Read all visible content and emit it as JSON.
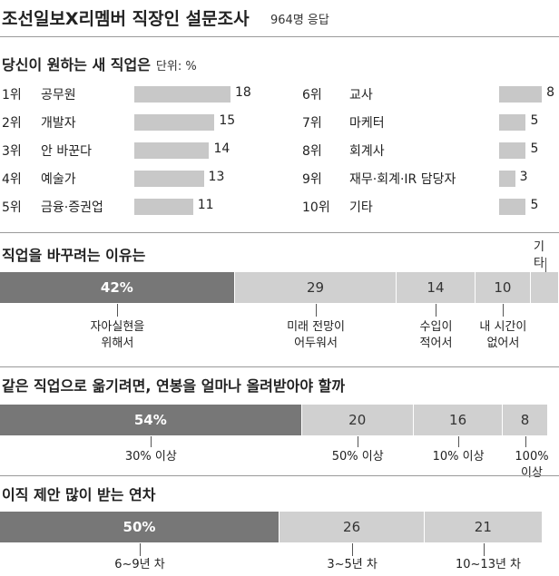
{
  "header": {
    "title": "조선일보X리멤버 직장인 설문조사",
    "note": "964명 응답"
  },
  "chart_data": [
    {
      "type": "bar",
      "title": "당신이 원하는 새 직업은",
      "unit": "단위: %",
      "ranks": [
        "1위",
        "2위",
        "3위",
        "4위",
        "5위",
        "6위",
        "7위",
        "8위",
        "9위",
        "10위"
      ],
      "categories": [
        "공무원",
        "개발자",
        "안 바꾼다",
        "예술가",
        "금융·증권업",
        "교사",
        "마케터",
        "회계사",
        "재무·회계·IR 담당자",
        "기타"
      ],
      "values": [
        18,
        15,
        14,
        13,
        11,
        8,
        5,
        5,
        3,
        5
      ],
      "value_labels": [
        "18",
        "15",
        "14",
        "13",
        "11",
        "8",
        "5",
        "5",
        "3",
        "5"
      ],
      "colors": {
        "bar": "#c8c8c8"
      }
    },
    {
      "type": "bar",
      "title": "직업을 바꾸려는 이유는",
      "categories": [
        "자아실현을\n위해서",
        "미래 전망이\n어두워서",
        "수입이\n적어서",
        "내 시간이\n없어서",
        "기타"
      ],
      "values": [
        42,
        29,
        14,
        10,
        5
      ],
      "value_labels": [
        "42%",
        "29",
        "14",
        "10",
        ""
      ],
      "colors": {
        "highlight": "#777777",
        "rest": "#d0d0d0"
      }
    },
    {
      "type": "bar",
      "title": "같은 직업으로 옮기려면, 연봉을 얼마나 올려받아야 할까",
      "categories": [
        "30% 이상",
        "50% 이상",
        "10% 이상",
        "100% 이상"
      ],
      "values": [
        54,
        20,
        16,
        8
      ],
      "value_labels": [
        "54%",
        "20",
        "16",
        "8"
      ],
      "colors": {
        "highlight": "#777777",
        "rest": "#d0d0d0"
      }
    },
    {
      "type": "bar",
      "title": "이직 제안 많이 받는 연차",
      "categories": [
        "6~9년 차",
        "3~5년 차",
        "10~13년 차"
      ],
      "values": [
        50,
        26,
        21
      ],
      "value_labels": [
        "50%",
        "26",
        "21"
      ],
      "colors": {
        "highlight": "#777777",
        "rest": "#d0d0d0"
      }
    }
  ]
}
